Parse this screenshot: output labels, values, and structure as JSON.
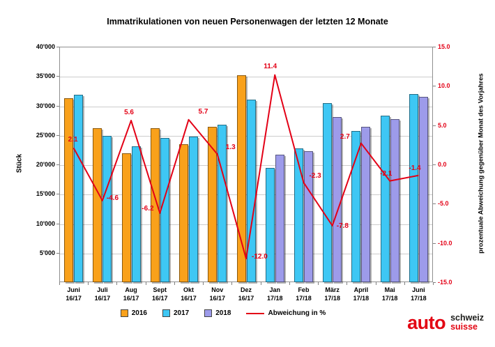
{
  "title": "Immatrikulationen von neuen Personenwagen der letzten 12 Monate",
  "chart_data": {
    "type": "bar",
    "subtype": "grouped-bars-with-line",
    "title": "Immatrikulationen von neuen Personenwagen der letzten 12 Monate",
    "grid": true,
    "legend_position": "bottom",
    "categories": [
      {
        "month": "Juni",
        "period": "16/17"
      },
      {
        "month": "Juli",
        "period": "16/17"
      },
      {
        "month": "Aug",
        "period": "16/17"
      },
      {
        "month": "Sept",
        "period": "16/17"
      },
      {
        "month": "Okt",
        "period": "16/17"
      },
      {
        "month": "Nov",
        "period": "16/17"
      },
      {
        "month": "Dez",
        "period": "16/17"
      },
      {
        "month": "Jan",
        "period": "17/18"
      },
      {
        "month": "Feb",
        "period": "17/18"
      },
      {
        "month": "März",
        "period": "17/18"
      },
      {
        "month": "April",
        "period": "17/18"
      },
      {
        "month": "Mai",
        "period": "17/18"
      },
      {
        "month": "Juni",
        "period": "17/18"
      }
    ],
    "bar_series": [
      {
        "name": "2016",
        "color": "#F9A11B",
        "values": [
          31200,
          26100,
          21900,
          26100,
          23400,
          26400,
          35200,
          null,
          null,
          null,
          null,
          null,
          null
        ]
      },
      {
        "name": "2017",
        "color": "#3EC7F4",
        "values": [
          31800,
          24900,
          23100,
          24500,
          24700,
          26700,
          31000,
          19400,
          22700,
          30400,
          25700,
          28300,
          31900
        ]
      },
      {
        "name": "2018",
        "color": "#9D9BEA",
        "values": [
          null,
          null,
          null,
          null,
          null,
          null,
          null,
          21600,
          22200,
          28100,
          26400,
          27700,
          31500
        ]
      }
    ],
    "line_series": {
      "name": "Abweichung in %",
      "color": "#E30016",
      "values": [
        2.1,
        -4.6,
        5.6,
        -6.2,
        5.7,
        1.3,
        -12.0,
        11.4,
        -2.3,
        -7.8,
        2.7,
        -2.1,
        -1.4
      ]
    },
    "axes": {
      "left": {
        "title": "Stück",
        "min": 0,
        "max": 40000,
        "step": 5000,
        "tick_labels": [
          "5'000",
          "10'000",
          "15'000",
          "20'000",
          "25'000",
          "30'000",
          "35'000",
          "40'000"
        ]
      },
      "right": {
        "title": "prozentuale Abweichung gegenüber Monat des Vorjahres",
        "min": -15,
        "max": 15,
        "step": 5,
        "color": "#E30016",
        "tick_labels": [
          "15.0",
          "10.0",
          "5.0",
          "0.0",
          "-5.0",
          "-10.0",
          "-15.0"
        ]
      }
    }
  },
  "logo": {
    "auto": "auto",
    "schweiz": "schweiz",
    "suisse": "suisse"
  }
}
